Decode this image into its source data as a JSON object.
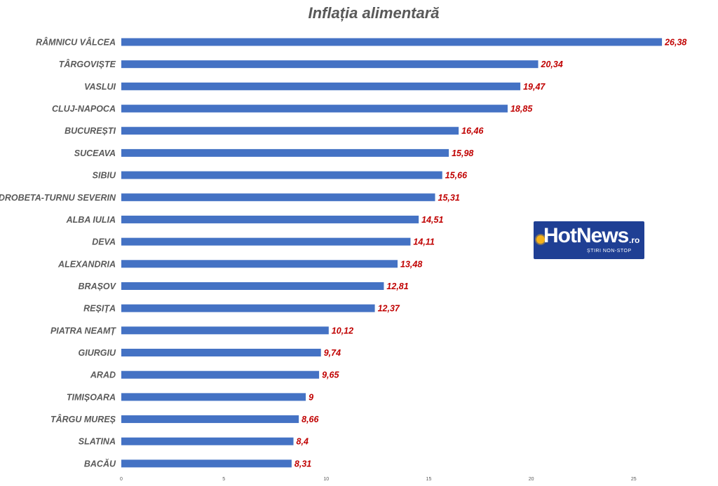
{
  "chart_data": {
    "type": "bar",
    "orientation": "horizontal",
    "title": "Inflația alimentară",
    "categories": [
      "RÂMNICU VÂLCEA",
      "TÂRGOVIȘTE",
      "VASLUI",
      "CLUJ-NAPOCA",
      "BUCUREȘTI",
      "SUCEAVA",
      "SIBIU",
      "DROBETA-TURNU SEVERIN",
      "ALBA IULIA",
      "DEVA",
      "ALEXANDRIA",
      "BRAȘOV",
      "REȘIȚA",
      "PIATRA NEAMȚ",
      "GIURGIU",
      "ARAD",
      "TIMIȘOARA",
      "TÂRGU MUREȘ",
      "SLATINA",
      "BACĂU"
    ],
    "values": [
      26.38,
      20.34,
      19.47,
      18.85,
      16.46,
      15.98,
      15.66,
      15.31,
      14.51,
      14.11,
      13.48,
      12.81,
      12.37,
      10.12,
      9.74,
      9.65,
      9,
      8.66,
      8.4,
      8.31
    ],
    "value_labels": [
      "26,38",
      "20,34",
      "19,47",
      "18,85",
      "16,46",
      "15,98",
      "15,66",
      "15,31",
      "14,51",
      "14,11",
      "13,48",
      "12,81",
      "12,37",
      "10,12",
      "9,74",
      "9,65",
      "9",
      "8,66",
      "8,4",
      "8,31"
    ],
    "x_ticks": [
      0,
      5,
      10,
      15,
      20,
      25
    ],
    "x_tick_labels": [
      "0",
      "5",
      "10",
      "15",
      "20",
      "25"
    ],
    "xlim": [
      0,
      28
    ],
    "grid": false,
    "legend": "none",
    "bar_color": "#4472c4",
    "value_label_color": "#c00000",
    "category_label_color": "#595959"
  },
  "logo": {
    "main": "HotNews",
    "suffix": ".ro",
    "tagline": "ȘTIRI NON-STOP",
    "background": "#1f3f94",
    "sun_color": "#f5b21a"
  }
}
